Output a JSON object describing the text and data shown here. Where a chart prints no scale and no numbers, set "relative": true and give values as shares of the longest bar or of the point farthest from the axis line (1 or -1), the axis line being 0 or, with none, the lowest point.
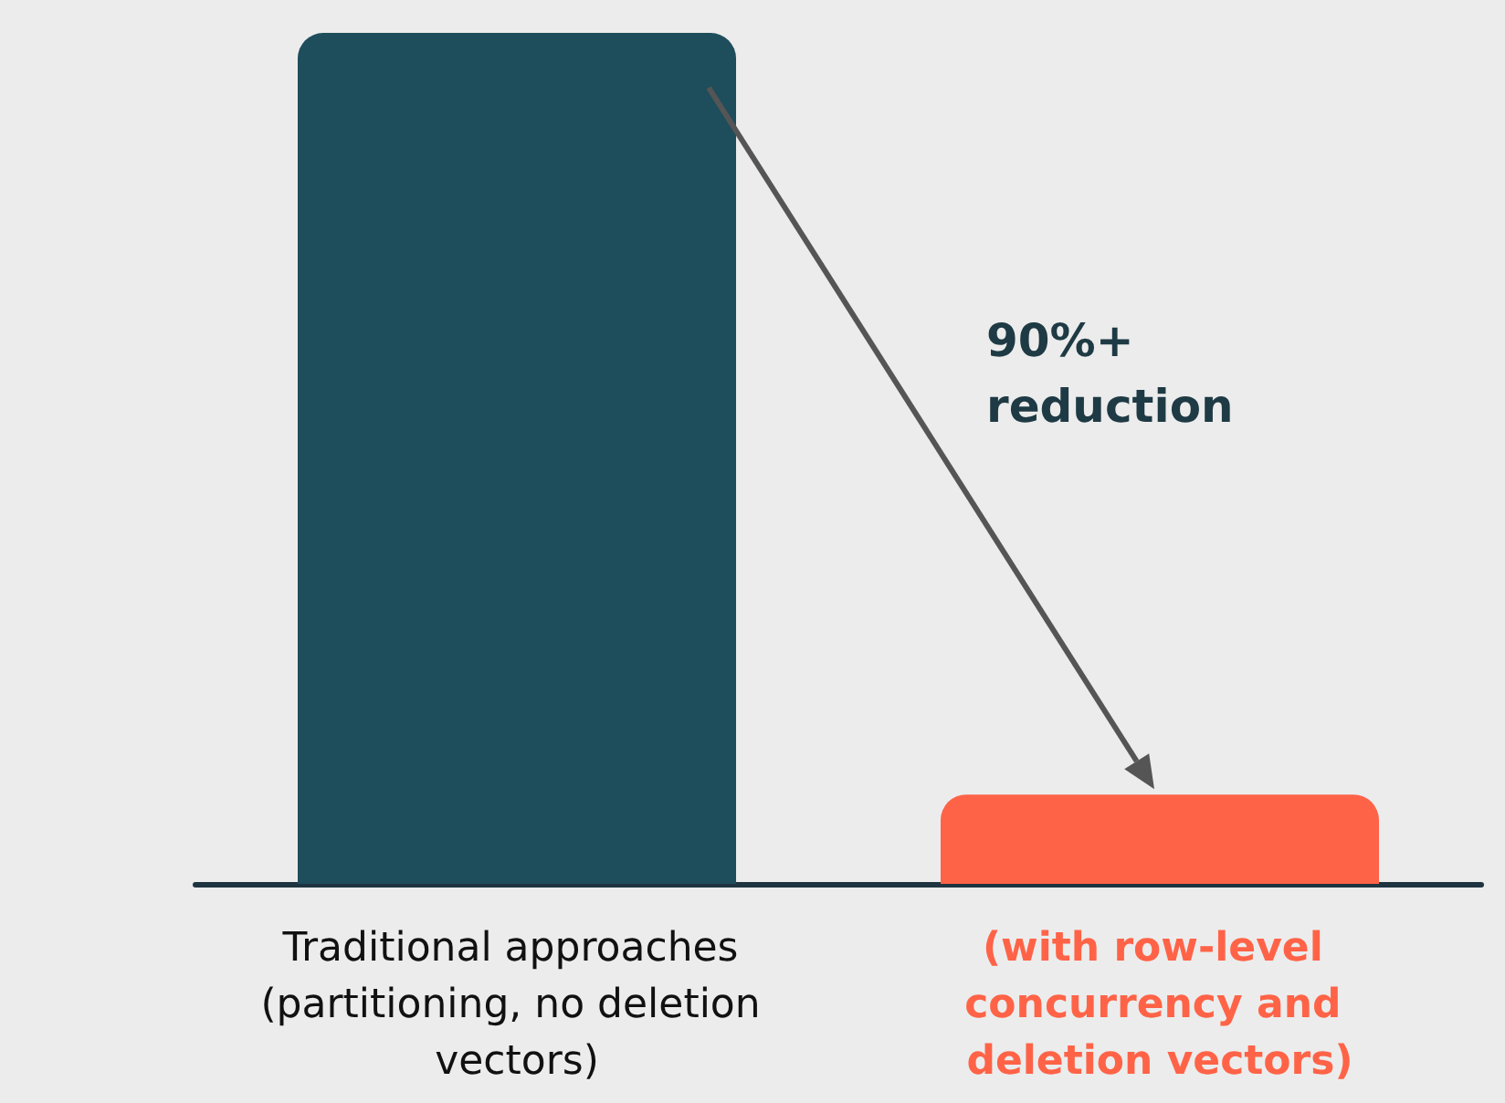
{
  "chart_data": {
    "type": "bar",
    "relative": true,
    "categories": [
      "Traditional approaches (partitioning, no deletion vectors)",
      "(with row-level concurrency and deletion vectors)"
    ],
    "values": [
      1,
      0.105
    ],
    "colors": [
      "#1e4d5c",
      "#ff6347"
    ],
    "annotations": [
      "90%+ reduction"
    ]
  }
}
